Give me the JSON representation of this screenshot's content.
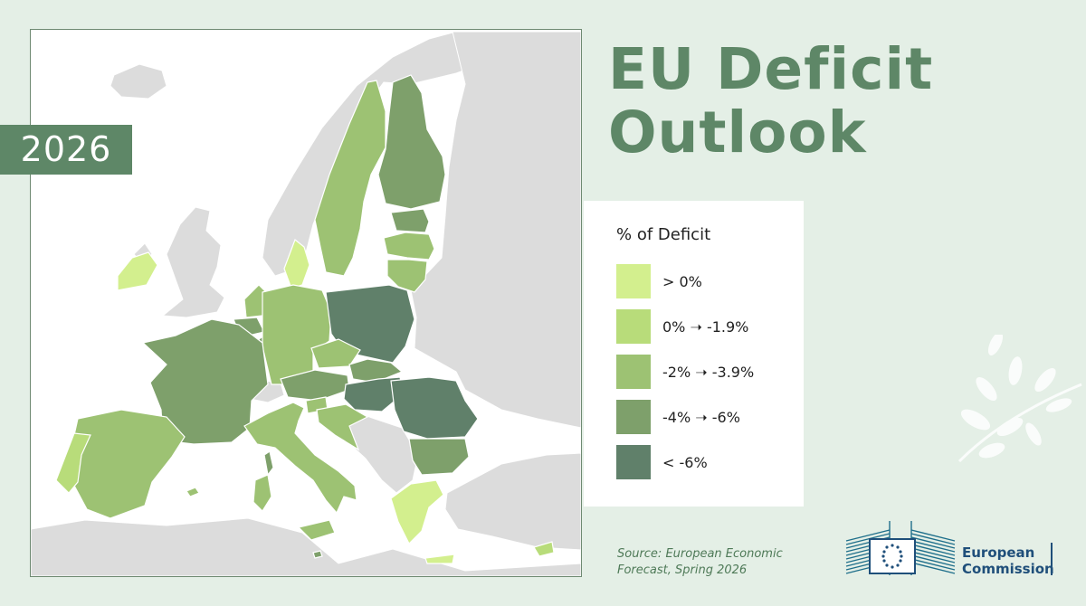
{
  "badge": {
    "year": "2026"
  },
  "title": {
    "line1": "EU Deficit",
    "line2": "Outlook"
  },
  "legend": {
    "title": "% of Deficit",
    "items": [
      {
        "label": "> 0%",
        "color": "#d3ef8e"
      },
      {
        "label": "0% ➝ -1.9%",
        "color": "#b8dc7a"
      },
      {
        "label": "-2% ➝ -3.9%",
        "color": "#9dc273"
      },
      {
        "label": "-4% ➝ -6%",
        "color": "#7ea06b"
      },
      {
        "label": "< -6%",
        "color": "#60806a"
      }
    ]
  },
  "source": {
    "line1": "Source: European Economic",
    "line2": "Forecast, Spring 2026"
  },
  "logo": {
    "line1": "European",
    "line2": "Commission"
  },
  "colors": {
    "background": "#e4efe6",
    "accent": "#5e8767",
    "non_eu": "#dcdcdc",
    "sea": "#ffffff"
  },
  "countries": [
    {
      "name": "Finland",
      "category": 3
    },
    {
      "name": "Sweden",
      "category": 2
    },
    {
      "name": "Estonia",
      "category": 3
    },
    {
      "name": "Latvia",
      "category": 2
    },
    {
      "name": "Lithuania",
      "category": 2
    },
    {
      "name": "Denmark",
      "category": 0
    },
    {
      "name": "Ireland",
      "category": 0
    },
    {
      "name": "Netherlands",
      "category": 2
    },
    {
      "name": "Belgium",
      "category": 3
    },
    {
      "name": "Luxembourg",
      "category": 3
    },
    {
      "name": "Germany",
      "category": 2
    },
    {
      "name": "Poland",
      "category": 4
    },
    {
      "name": "Czechia",
      "category": 2
    },
    {
      "name": "Slovakia",
      "category": 3
    },
    {
      "name": "Austria",
      "category": 3
    },
    {
      "name": "Hungary",
      "category": 4
    },
    {
      "name": "Romania",
      "category": 4
    },
    {
      "name": "Bulgaria",
      "category": 3
    },
    {
      "name": "Slovenia",
      "category": 2
    },
    {
      "name": "Croatia",
      "category": 2
    },
    {
      "name": "France",
      "category": 3
    },
    {
      "name": "Spain",
      "category": 2
    },
    {
      "name": "Portugal",
      "category": 1
    },
    {
      "name": "Italy",
      "category": 2
    },
    {
      "name": "Greece",
      "category": 0
    },
    {
      "name": "Cyprus",
      "category": 1
    },
    {
      "name": "Malta",
      "category": 3
    }
  ]
}
